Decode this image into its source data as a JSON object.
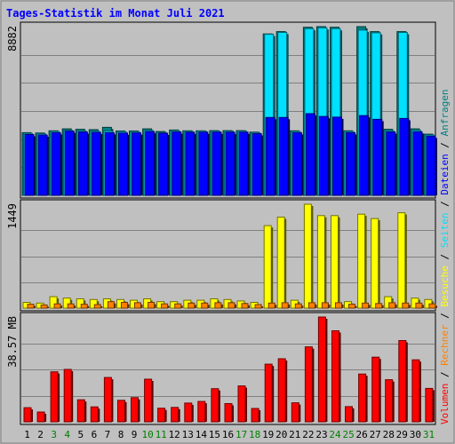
{
  "chart_data": {
    "type": "bar",
    "title": "Tages-Statistik im Monat Juli 2021",
    "categories": [
      "1",
      "2",
      "3",
      "4",
      "5",
      "6",
      "7",
      "8",
      "9",
      "10",
      "11",
      "12",
      "13",
      "14",
      "15",
      "16",
      "17",
      "18",
      "19",
      "20",
      "21",
      "22",
      "23",
      "24",
      "25",
      "26",
      "27",
      "28",
      "29",
      "30",
      "31"
    ],
    "weekend_days": [
      "3",
      "4",
      "10",
      "11",
      "17",
      "18",
      "24",
      "25",
      "31"
    ],
    "grid": true,
    "panels": [
      {
        "id": "top",
        "scale_label": "8882",
        "ylim": [
          0,
          8882
        ],
        "series": [
          {
            "name": "Anfragen",
            "color": "#008080",
            "values": [
              3300,
              3280,
              3400,
              3500,
              3480,
              3460,
              3580,
              3390,
              3390,
              3500,
              3360,
              3440,
              3400,
              3400,
              3410,
              3410,
              3410,
              3330,
              8500,
              8620,
              3400,
              8850,
              8882,
              8850,
              3400,
              8882,
              8620,
              3480,
              8620,
              3500,
              3220
            ]
          },
          {
            "name": "Seiten",
            "color": "#00e0ff",
            "values": [
              3260,
              3240,
              3360,
              3420,
              3400,
              3380,
              3380,
              3350,
              3350,
              3420,
              3320,
              3400,
              3370,
              3380,
              3380,
              3380,
              3380,
              3300,
              8480,
              8580,
              3360,
              8780,
              8820,
              8780,
              3360,
              8700,
              8560,
              3400,
              8580,
              3420,
              3180
            ]
          },
          {
            "name": "Dateien",
            "color": "#0000ff",
            "values": [
              3200,
              3180,
              3300,
              3380,
              3340,
              3320,
              3300,
              3280,
              3290,
              3360,
              3270,
              3340,
              3320,
              3330,
              3330,
              3330,
              3330,
              3250,
              4100,
              4100,
              3300,
              4300,
              4150,
              4120,
              3300,
              4200,
              4000,
              3340,
              4050,
              3350,
              3120
            ]
          }
        ]
      },
      {
        "id": "middle",
        "scale_label": "1449",
        "ylim": [
          0,
          1449
        ],
        "series": [
          {
            "name": "Besuche",
            "color": "#ffff00",
            "values": [
              80,
              70,
              160,
              140,
              130,
              120,
              130,
              120,
              110,
              130,
              90,
              90,
              110,
              110,
              130,
              120,
              100,
              80,
              1150,
              1270,
              110,
              1449,
              1290,
              1290,
              90,
              1310,
              1250,
              160,
              1330,
              140,
              120
            ]
          },
          {
            "name": "Rechner",
            "color": "#ff8000",
            "values": [
              55,
              45,
              60,
              60,
              55,
              50,
              90,
              80,
              75,
              80,
              60,
              60,
              70,
              70,
              75,
              75,
              65,
              50,
              70,
              75,
              60,
              75,
              75,
              75,
              55,
              70,
              65,
              75,
              70,
              70,
              60
            ]
          }
        ]
      },
      {
        "id": "bottom",
        "scale_label": "38.57 MB",
        "ylim": [
          0,
          38.57
        ],
        "series": [
          {
            "name": "Volumen",
            "color": "#ff0000",
            "values": [
              5.2,
              3.6,
              18.4,
              19.3,
              8.1,
              5.5,
              16.3,
              7.9,
              8.9,
              15.7,
              5.0,
              5.3,
              6.9,
              7.5,
              12.2,
              6.7,
              13.2,
              4.9,
              21.2,
              23.2,
              7.0,
              27.6,
              38.57,
              33.5,
              5.6,
              17.6,
              23.8,
              15.5,
              29.9,
              22.8,
              12.3
            ]
          }
        ]
      }
    ],
    "legend_placement": "right"
  }
}
